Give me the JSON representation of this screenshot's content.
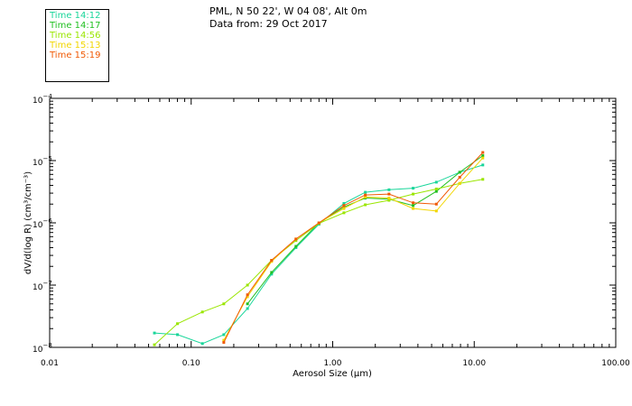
{
  "header": {
    "location": "PML, N 50 22', W 04 08', Alt 0m",
    "data_from": "Data from: 29 Oct 2017"
  },
  "colors": {
    "axis": "#000000",
    "series": [
      "#19d69a",
      "#21c021",
      "#9ae600",
      "#f2d600",
      "#f05a05"
    ]
  },
  "chart_data": {
    "type": "line",
    "xlabel": "Aerosol Size (µm)",
    "ylabel": "dV/d(log R) (cm³/cm⁻³)",
    "x_scale": "log",
    "y_scale": "log",
    "xlim": [
      0.01,
      100
    ],
    "ylim": [
      1e-08,
      0.0001
    ],
    "x_ticks": [
      {
        "value": 0.01,
        "label": "0.01"
      },
      {
        "value": 0.1,
        "label": "0.10"
      },
      {
        "value": 1,
        "label": "1.00"
      },
      {
        "value": 10,
        "label": "10.00"
      },
      {
        "value": 100,
        "label": "100.00"
      }
    ],
    "y_ticks": [
      {
        "value": 1e-08,
        "mant": "10",
        "exp": "−8"
      },
      {
        "value": 1e-07,
        "mant": "10",
        "exp": "−7"
      },
      {
        "value": 1e-06,
        "mant": "10",
        "exp": "−6"
      },
      {
        "value": 1e-05,
        "mant": "10",
        "exp": "−5"
      },
      {
        "value": 0.0001,
        "mant": "10",
        "exp": "−4"
      }
    ],
    "legend_position": "top-left",
    "series": [
      {
        "name": "Time 14:12",
        "x": [
          0.055,
          0.08,
          0.12,
          0.17,
          0.25,
          0.37,
          0.55,
          0.8,
          1.2,
          1.7,
          2.5,
          3.7,
          5.4,
          7.9,
          11.5
        ],
        "y": [
          1.7e-08,
          1.6e-08,
          1.15e-08,
          1.6e-08,
          4.2e-08,
          1.5e-07,
          4e-07,
          9.5e-07,
          2.05e-06,
          3.1e-06,
          3.4e-06,
          3.6e-06,
          4.5e-06,
          6.5e-06,
          8.5e-06
        ]
      },
      {
        "name": "Time 14:17",
        "x": [
          0.25,
          0.37,
          0.55,
          0.8,
          1.2,
          1.7,
          2.5,
          3.7,
          5.4,
          7.9,
          11.5
        ],
        "y": [
          5e-08,
          1.6e-07,
          4.2e-07,
          1e-06,
          1.8e-06,
          2.5e-06,
          2.4e-06,
          1.9e-06,
          3.2e-06,
          6.5e-06,
          1.2e-05
        ]
      },
      {
        "name": "Time 14:56",
        "x": [
          0.055,
          0.08,
          0.12,
          0.17,
          0.25,
          0.37,
          0.55,
          0.8,
          1.2,
          1.7,
          2.5,
          3.7,
          5.4,
          7.9,
          11.5
        ],
        "y": [
          1.1e-08,
          2.4e-08,
          3.7e-08,
          5e-08,
          1e-07,
          2.5e-07,
          5.2e-07,
          9.8e-07,
          1.45e-06,
          1.95e-06,
          2.3e-06,
          2.9e-06,
          3.5e-06,
          4.3e-06,
          5e-06
        ]
      },
      {
        "name": "Time 15:13",
        "x": [
          0.17,
          0.25,
          0.37,
          0.55,
          0.8,
          1.2,
          1.7,
          2.5,
          3.7,
          5.4,
          7.9,
          11.5
        ],
        "y": [
          1.3e-08,
          6.5e-08,
          2.4e-07,
          5.5e-07,
          1e-06,
          1.7e-06,
          2.6e-06,
          2.5e-06,
          1.7e-06,
          1.55e-06,
          4.3e-06,
          1.1e-05
        ]
      },
      {
        "name": "Time 15:19",
        "x": [
          0.17,
          0.25,
          0.37,
          0.55,
          0.8,
          1.2,
          1.7,
          2.5,
          3.7,
          5.4,
          7.9,
          11.5
        ],
        "y": [
          1.2e-08,
          7e-08,
          2.5e-07,
          5.5e-07,
          1e-06,
          1.9e-06,
          2.8e-06,
          2.9e-06,
          2.1e-06,
          2e-06,
          5.4e-06,
          1.35e-05
        ]
      }
    ]
  }
}
